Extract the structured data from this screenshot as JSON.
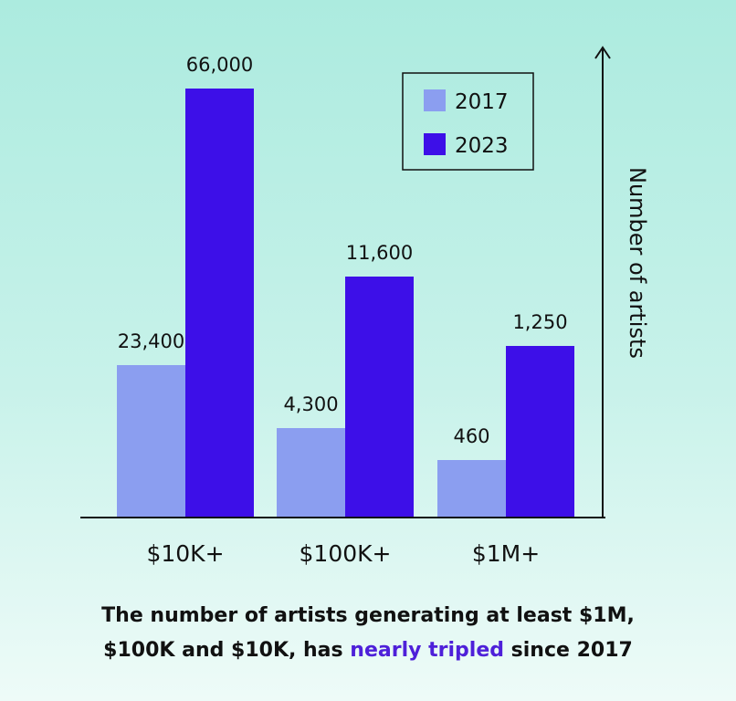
{
  "chart_data": {
    "type": "bar",
    "categories": [
      "$10K+",
      "$100K+",
      "$1M+"
    ],
    "series": [
      {
        "name": "2017",
        "values": [
          23400,
          4300,
          460
        ],
        "labels": [
          "23,400",
          "4,300",
          "460"
        ],
        "color": "#8b9ef0"
      },
      {
        "name": "2023",
        "values": [
          66000,
          11600,
          1250
        ],
        "labels": [
          "66,000",
          "11,600",
          "1,250"
        ],
        "color": "#3d0fe8"
      }
    ],
    "ylabel": "Number of artists",
    "legend_position": "top-right",
    "grid": false,
    "axis_scale": "non-linear"
  },
  "caption": {
    "line1": "The number of artists generating at least $1M,",
    "line2_prefix": "$100K and $10K, has",
    "line2_highlight": "nearly tripled",
    "line2_suffix": "since 2017",
    "highlight_color": "#4e20d9"
  }
}
